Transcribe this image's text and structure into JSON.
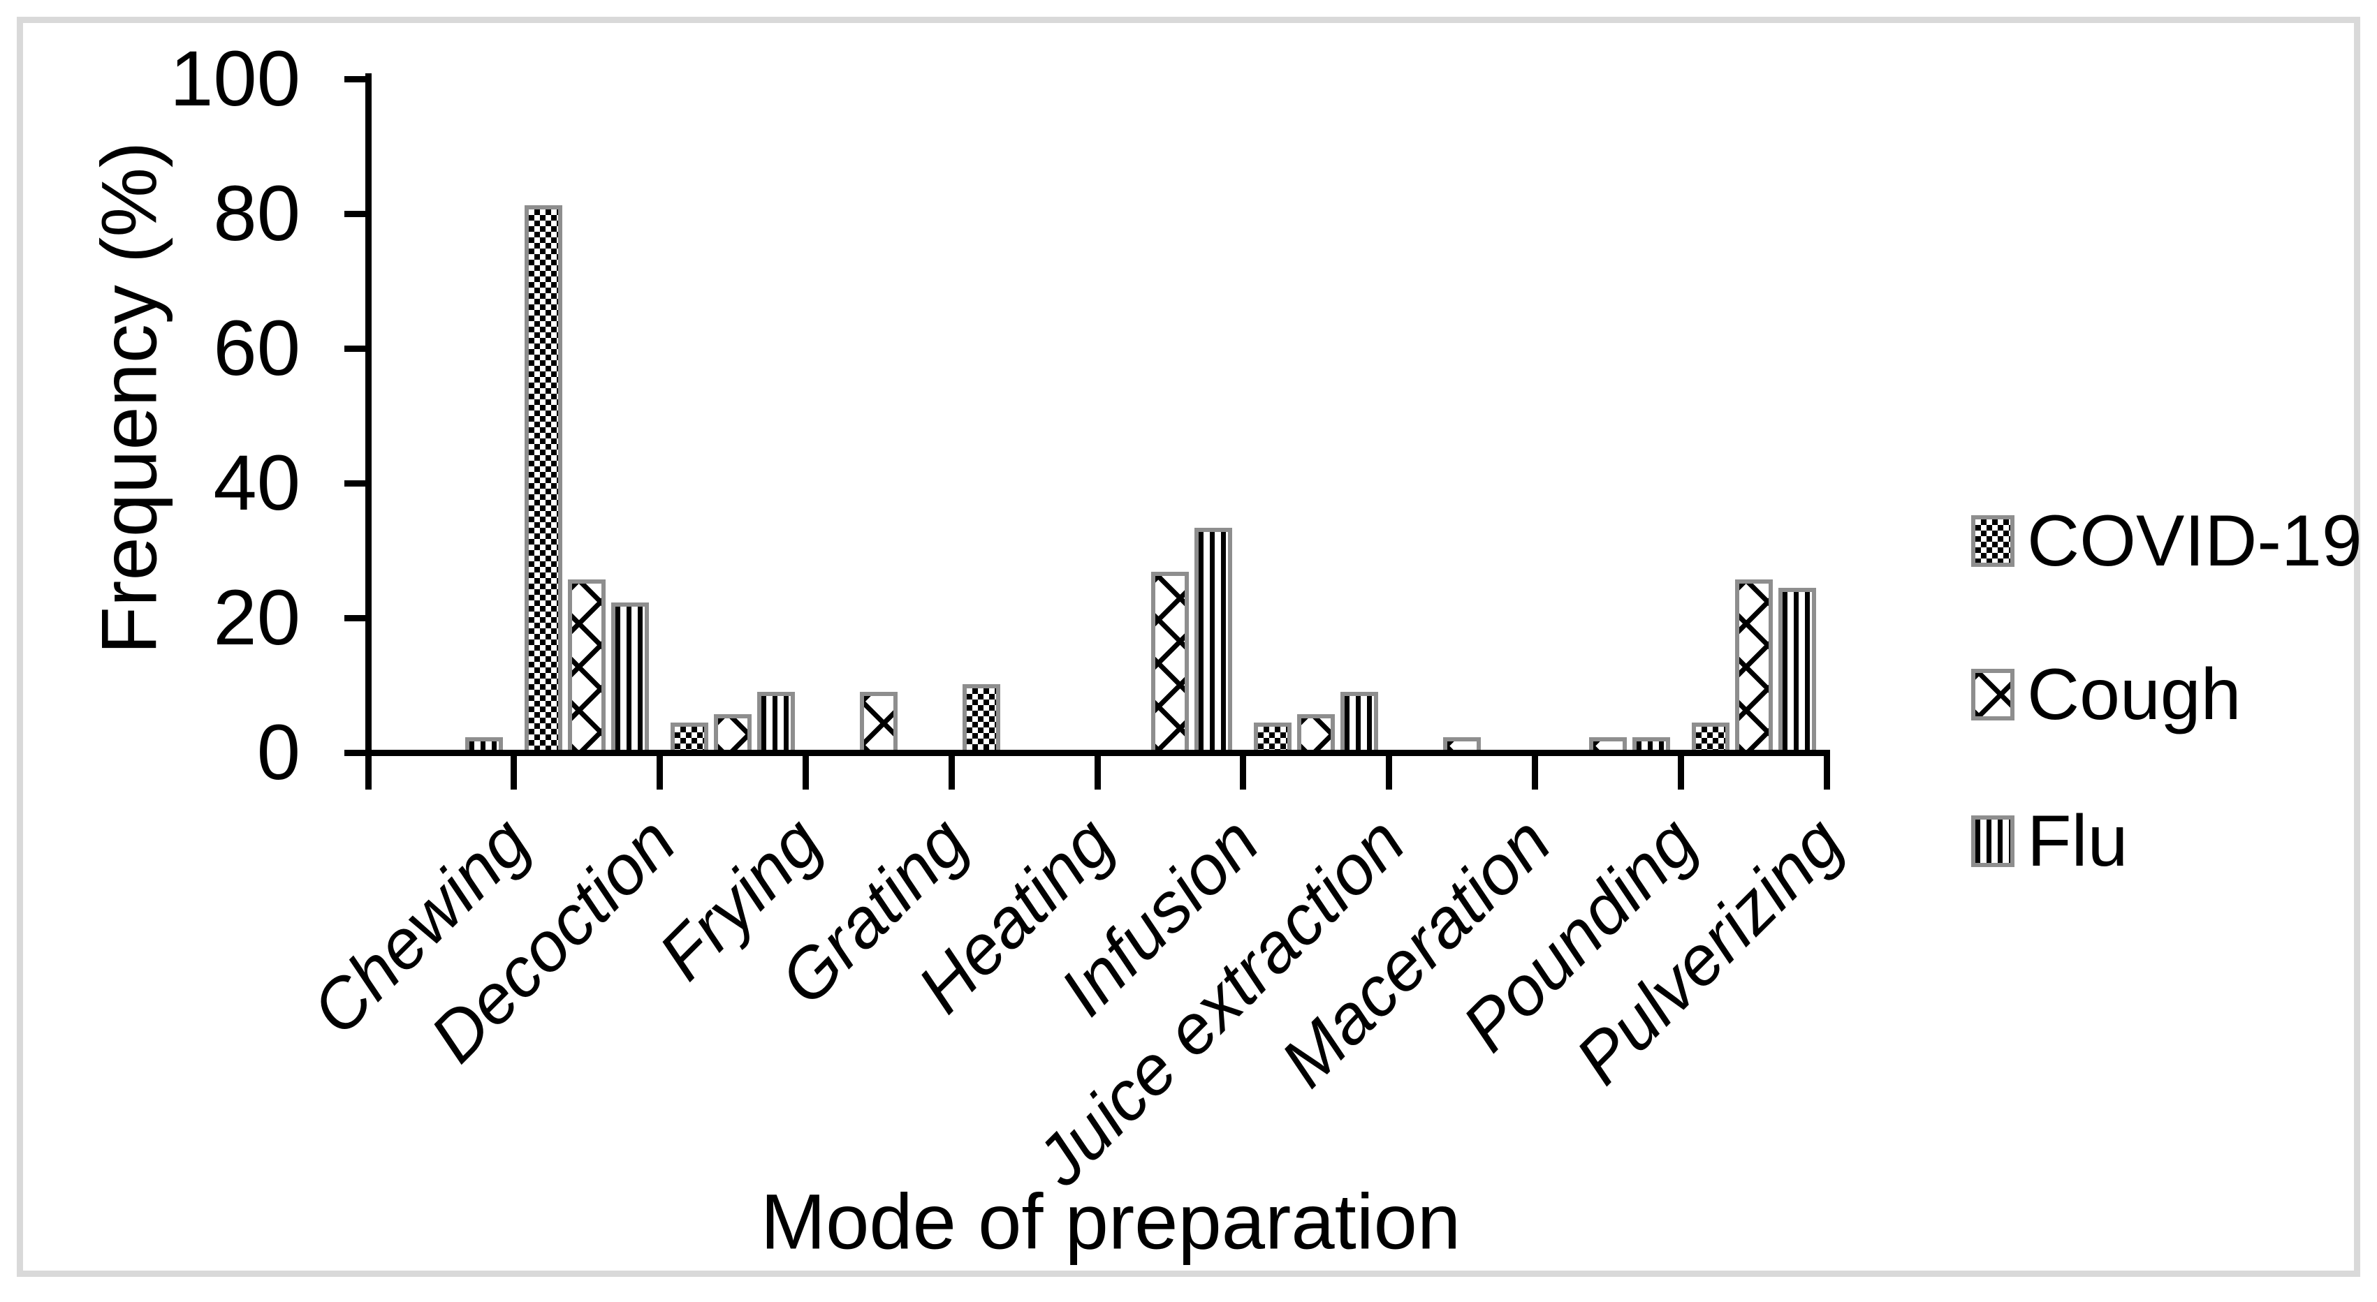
{
  "figure": {
    "background": "#ffffff",
    "frame_color": "#d9d9d9"
  },
  "chart_data": {
    "type": "bar",
    "title": "",
    "xlabel": "Mode of preparation",
    "ylabel": "Frequency (%)",
    "ylim": [
      0,
      100
    ],
    "yticks": [
      0,
      20,
      40,
      60,
      80,
      100
    ],
    "grid": false,
    "legend_position": "right-middle",
    "categories": [
      "Chewing",
      "Decoction",
      "Frying",
      "Grating",
      "Heating",
      "Infusion",
      "Juice extraction",
      "Maceration",
      "Pounding",
      "Pulverizing"
    ],
    "series": [
      {
        "name": "COVID-19",
        "pattern": "small-checkerboard",
        "values": [
          0,
          81.1,
          4.4,
          0,
          10.0,
          0,
          4.4,
          0,
          0,
          4.4
        ]
      },
      {
        "name": "Cough",
        "pattern": "diamond-lattice",
        "values": [
          0,
          25.6,
          5.6,
          8.9,
          0,
          26.7,
          5.6,
          2.2,
          2.2,
          25.6
        ]
      },
      {
        "name": "Flu",
        "pattern": "vertical-stripes",
        "values": [
          2.2,
          22.2,
          8.9,
          0,
          0,
          33.3,
          8.9,
          0,
          2.2,
          24.4
        ]
      }
    ],
    "bar_fill": "#ffffff",
    "pattern_color": "#000000",
    "bar_border_color": "#8e8e8e",
    "axis_color": "#000000",
    "text_color": "#000000"
  }
}
